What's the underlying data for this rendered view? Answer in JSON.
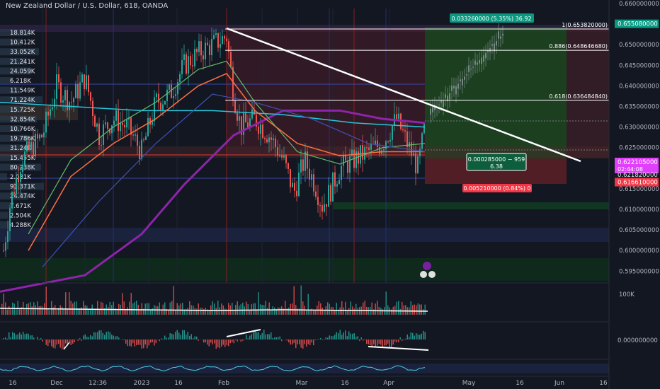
{
  "chart_title": "New Zealand Dollar / U.S. Dollar, 618, OANDA",
  "colors": {
    "background": "#131722",
    "up": "#26a69a",
    "down": "#ef5350",
    "profit_zone": "#1e4620",
    "loss_zone": "#5a1f26",
    "price_label_green": "#089981",
    "price_label_red": "#f23645",
    "price_label_current": "#e040fb",
    "ma_purple": "#8e24aa",
    "ma_teal": "#26c6da",
    "ma_orange": "#ff7043",
    "ma_green": "#66bb6a",
    "ma_blue": "#3f51b5",
    "trendline": "#ffffff"
  },
  "chart_data": {
    "type": "candlestick",
    "symbol": "NZDUSD",
    "timeframe": "618",
    "y_axis_ticks": [
      "0.660000000",
      "0.650000000",
      "0.645000000",
      "0.640000000",
      "0.635000000",
      "0.630000000",
      "0.625000000",
      "0.615000000",
      "0.610000000",
      "0.605000000",
      "0.600000000",
      "0.595000000"
    ],
    "x_axis_ticks": [
      "16",
      "Dec",
      "12:36",
      "2023",
      "16",
      "Feb",
      "Mar",
      "16",
      "Apr",
      "May",
      "16",
      "Jun",
      "16"
    ],
    "price_labels": {
      "target": "0.655080000",
      "current": "0.622105000",
      "current_countdown": "02:44:08",
      "level_621": "0.621820000",
      "stop": "0.616610000"
    },
    "fib_levels": [
      {
        "label": "1(0.653820000)",
        "price": 0.65382
      },
      {
        "label": "0.886(0.648646680)",
        "price": 0.648647
      },
      {
        "label": "0.618(0.636484840)",
        "price": 0.636485
      }
    ],
    "position": {
      "profit_label": "0.033260000 (5.35%) 36.92",
      "entry_label_line1": "0.000285000 − 959",
      "entry_label_line2": "6.38",
      "loss_label": "0.005210000 (0.84%) 0"
    },
    "volume_profile_labels": [
      "18.814K",
      "10.412K",
      "33.052K",
      "21.241K",
      "24.059K",
      "6.218K",
      "11.549K",
      "71.224K",
      "15.725K",
      "32.854K",
      "10.766K",
      "19.786K",
      "31.24K",
      "15.455K",
      "80.238K",
      "2.031K",
      "91.371K",
      "24.474K",
      "7.671K",
      "2.504K",
      "4.288K"
    ],
    "volume_axis_label": "100K",
    "oscillator_axis_label": "0.000000000"
  }
}
